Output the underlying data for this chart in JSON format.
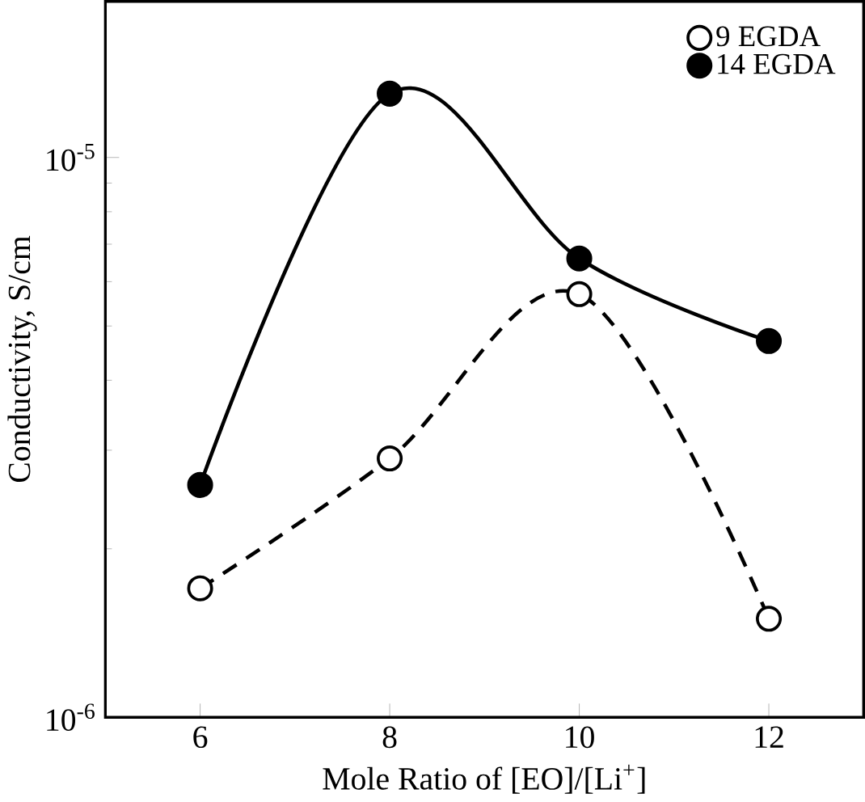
{
  "chart_data": {
    "type": "line",
    "xlabel": "Mole Ratio of [EO]/[Li$^{+}$]",
    "ylabel": "Conductivity, S/cm",
    "x": [
      6,
      8,
      10,
      12
    ],
    "log": "y",
    "xlim": [
      5,
      13
    ],
    "ylim": [
      1e-06,
      1.9e-05
    ],
    "xticks": [
      6,
      8,
      10,
      12
    ],
    "yticks": [
      {
        "value": 1e-06,
        "label": "10$^{-6}$"
      },
      {
        "value": 1e-05,
        "label": "10$^{-5}$"
      }
    ],
    "legend": "top right",
    "grid": false,
    "marker": "circle",
    "series": [
      {
        "name": "9 EGDA",
        "color": "#000000",
        "line_style": "dashed",
        "values": [
          1.7e-06,
          2.9e-06,
          5.7e-06,
          1.5e-06
        ]
      },
      {
        "name": "14 EGDA",
        "color": "#000000",
        "line_style": "solid",
        "values": [
          2.6e-06,
          1.3e-05,
          6.6e-06,
          4.7e-06
        ]
      }
    ]
  }
}
